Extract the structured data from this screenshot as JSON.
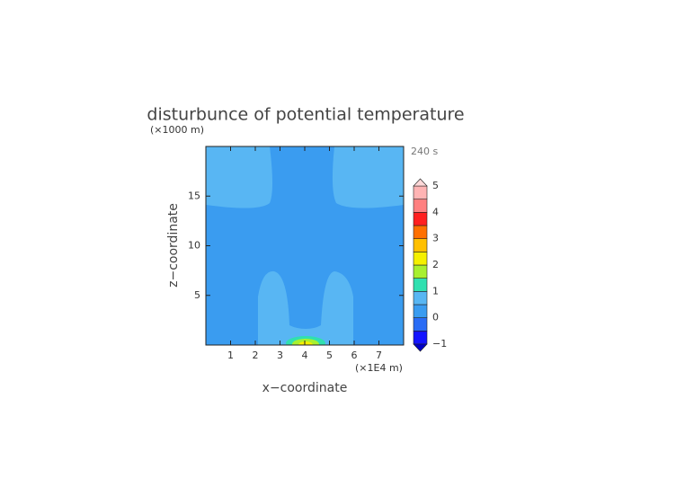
{
  "chart_data": {
    "type": "contour",
    "title": "disturbunce of potential temperature",
    "x_label": "x−coordinate",
    "y_label": "z−coordinate",
    "x_unit": "(×1E4 m)",
    "y_unit": "(×1000 m)",
    "time_label": "240 s",
    "xlim": [
      0,
      8
    ],
    "ylim": [
      0,
      20
    ],
    "xticks": [
      1,
      2,
      3,
      4,
      5,
      6,
      7
    ],
    "yticks": [
      5,
      10,
      15
    ],
    "levels": [
      -1,
      -0.5,
      0,
      0.5,
      1,
      1.5,
      2,
      2.5,
      3,
      3.5,
      4,
      4.5,
      5
    ],
    "colors": [
      "#1414ff",
      "#2a6cf5",
      "#3a9cf0",
      "#58b6f3",
      "#30e0b0",
      "#a8f030",
      "#f5f000",
      "#ffc000",
      "#ff7000",
      "#ff2020",
      "#ff8080",
      "#ffb4b4"
    ],
    "under_color": "#0000c8",
    "over_color": "#ffd8d8",
    "colorbar_ticks": [
      {
        "value": -1,
        "label": "−1"
      },
      0,
      1,
      2,
      3,
      4,
      5
    ]
  }
}
